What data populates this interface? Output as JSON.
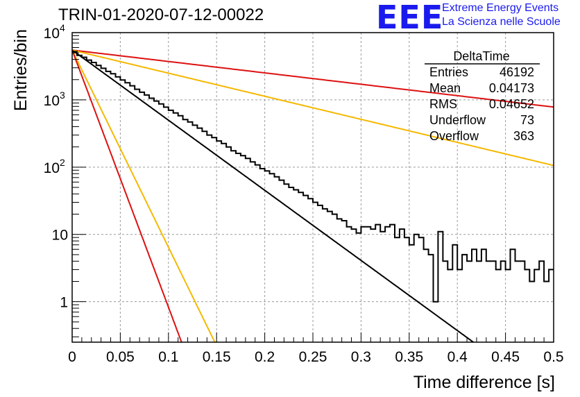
{
  "header": {
    "title": "TRIN-01-2020-07-12-00022",
    "logo_text": "EEE",
    "logo_line1": "Extreme Energy Events",
    "logo_line2": "La Scienza nelle Scuole"
  },
  "stats": {
    "name": "DeltaTime",
    "rows": [
      {
        "label": "Entries",
        "value": "46192"
      },
      {
        "label": "Mean",
        "value": "0.04173"
      },
      {
        "label": "RMS",
        "value": "0.04652"
      },
      {
        "label": "Underflow",
        "value": "73"
      },
      {
        "label": "Overflow",
        "value": "363"
      }
    ]
  },
  "chart_data": {
    "type": "line",
    "title": "TRIN-01-2020-07-12-00022",
    "xlabel": "Time difference [s]",
    "ylabel": "Entries/bin",
    "xlim": [
      0,
      0.5
    ],
    "ylim": [
      0.25,
      10000
    ],
    "y_scale": "log",
    "grid": true,
    "x_ticks": [
      "0",
      "0.05",
      "0.1",
      "0.15",
      "0.2",
      "0.25",
      "0.3",
      "0.35",
      "0.4",
      "0.45",
      "0.5"
    ],
    "y_ticks": [
      {
        "value": 1,
        "label": "1"
      },
      {
        "value": 10,
        "label": "10"
      },
      {
        "value": 100,
        "label": "10",
        "exp": "2"
      },
      {
        "value": 1000,
        "label": "10",
        "exp": "3"
      },
      {
        "value": 10000,
        "label": "10",
        "exp": "4"
      }
    ],
    "histogram": {
      "name": "DeltaTime",
      "bin_width": 0.005,
      "color": "#000000",
      "values": [
        5200,
        4600,
        4300,
        3900,
        3600,
        3250,
        2950,
        2650,
        2450,
        2200,
        1980,
        1800,
        1620,
        1440,
        1300,
        1180,
        1060,
        960,
        870,
        780,
        700,
        640,
        580,
        510,
        470,
        420,
        380,
        340,
        300,
        275,
        245,
        225,
        200,
        175,
        160,
        148,
        135,
        120,
        108,
        95,
        88,
        80,
        72,
        64,
        56,
        50,
        46,
        42,
        38,
        34,
        30,
        27,
        24,
        22,
        20,
        17,
        16,
        13,
        12,
        10.5,
        13,
        13,
        12,
        14,
        11,
        13,
        14,
        9,
        12,
        9,
        7,
        10,
        9,
        6,
        5,
        1,
        11,
        4,
        3,
        7,
        3,
        5,
        4,
        6,
        4,
        6,
        4,
        4,
        3,
        4,
        3,
        6,
        4,
        4,
        3,
        2,
        3,
        4,
        2,
        3
      ]
    },
    "fits": [
      {
        "color": "#dd1111",
        "a": 5500,
        "b": 3.9
      },
      {
        "color": "#f5b800",
        "a": 5500,
        "b": 7.9
      },
      {
        "color": "#000000",
        "a": 5500,
        "b": 24.0
      },
      {
        "color": "#f5b800",
        "a": 5500,
        "b": 67.5
      },
      {
        "color": "#dd1111",
        "a": 5500,
        "b": 88.0
      }
    ]
  }
}
